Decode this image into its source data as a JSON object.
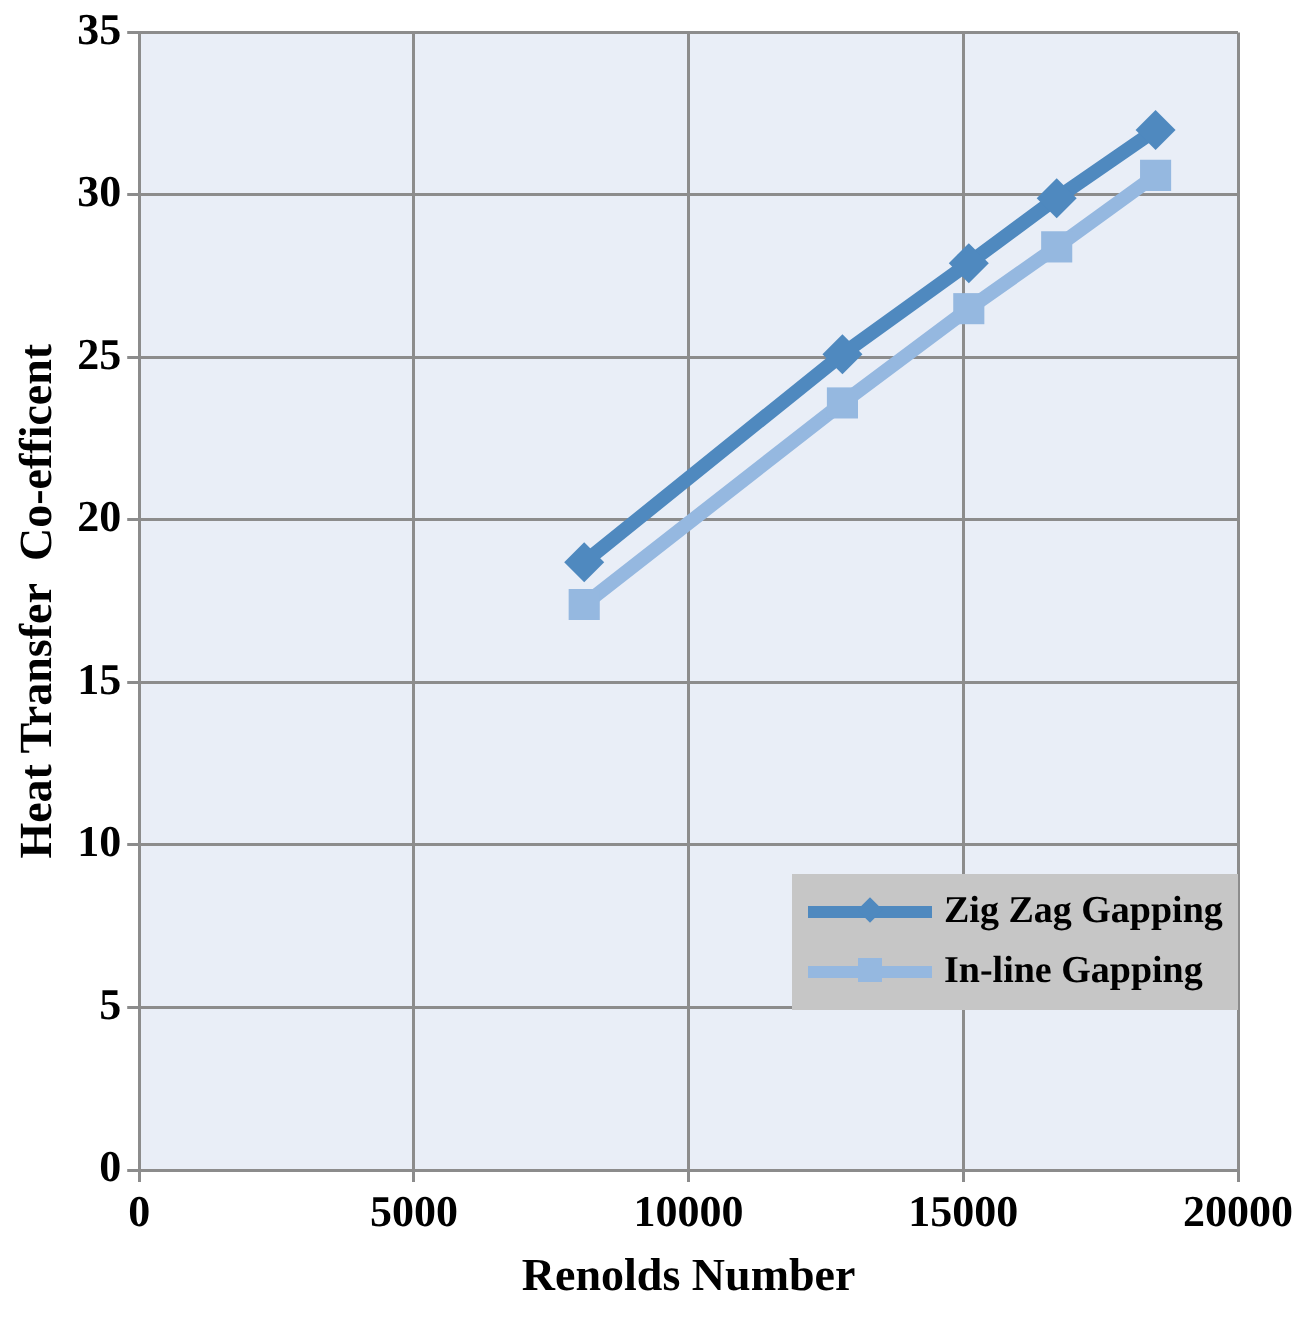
{
  "chart_data": {
    "type": "line",
    "xlabel": "Renolds Number",
    "ylabel": "Heat Transfer  Co-efficent",
    "x": [
      8100,
      12800,
      15100,
      16700,
      18500
    ],
    "series": [
      {
        "name": "Zig Zag Gapping",
        "color": "#4f89bf",
        "marker": "diamond",
        "values": [
          18.7,
          25.1,
          27.9,
          29.9,
          32.0
        ]
      },
      {
        "name": "In-line Gapping",
        "color": "#95b8e0",
        "marker": "square",
        "values": [
          17.4,
          23.6,
          26.5,
          28.4,
          30.6
        ]
      }
    ],
    "xlim": [
      0,
      20000
    ],
    "xticks": [
      0,
      5000,
      10000,
      15000,
      20000
    ],
    "ylim": [
      0,
      35
    ],
    "yticks": [
      0,
      5,
      10,
      15,
      20,
      25,
      30,
      35
    ],
    "grid": true,
    "legend": "bottom right",
    "line_style": "solid"
  }
}
